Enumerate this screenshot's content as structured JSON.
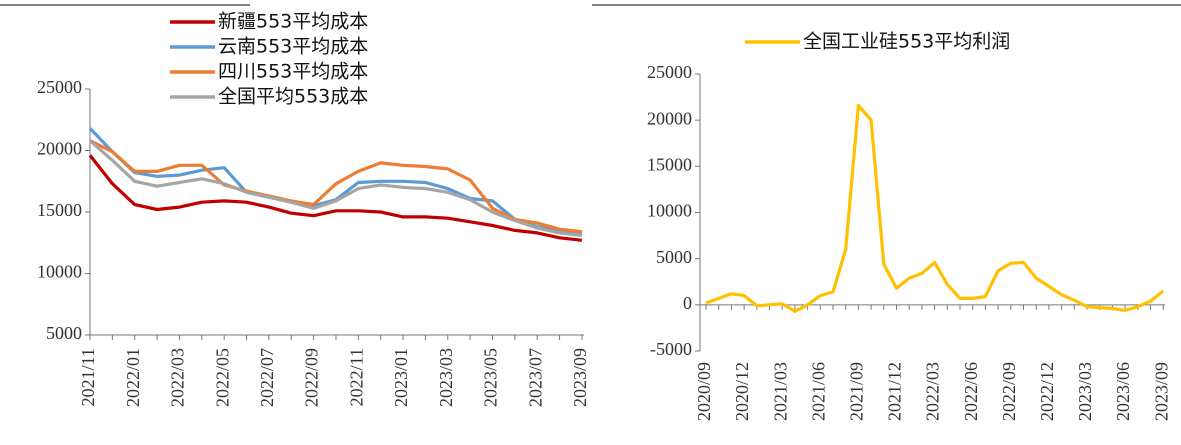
{
  "chart_data": [
    {
      "type": "line",
      "categories": [
        "2021/11",
        null,
        "2022/01",
        null,
        "2022/03",
        null,
        "2022/05",
        null,
        "2022/07",
        null,
        "2022/09",
        null,
        "2022/11",
        null,
        "2023/01",
        null,
        "2023/03",
        null,
        "2023/05",
        null,
        "2023/07",
        null,
        "2023/09"
      ],
      "series": [
        {
          "name": "新疆553平均成本",
          "color": "#c00000",
          "values": [
            19600,
            17300,
            15600,
            15200,
            15400,
            15800,
            15900,
            15800,
            15400,
            14900,
            14700,
            15100,
            15100,
            15000,
            14600,
            14600,
            14500,
            14200,
            13900,
            13500,
            13300,
            12900,
            12700
          ]
        },
        {
          "name": "云南553平均成本",
          "color": "#5b9bd5",
          "values": [
            21800,
            19900,
            18200,
            17900,
            18000,
            18400,
            18600,
            16600,
            16200,
            15800,
            15500,
            16000,
            17400,
            17500,
            17500,
            17400,
            16900,
            16100,
            15900,
            14400,
            13800,
            13500,
            13300
          ]
        },
        {
          "name": "四川553平均成本",
          "color": "#ed7d31",
          "values": [
            20800,
            19900,
            18300,
            18300,
            18800,
            18800,
            17200,
            16700,
            16300,
            15900,
            15600,
            17300,
            18300,
            19000,
            18800,
            18700,
            18500,
            17600,
            15300,
            14400,
            14100,
            13600,
            13400
          ]
        },
        {
          "name": "全国平均553成本",
          "color": "#a5a5a5",
          "values": [
            20800,
            19200,
            17500,
            17100,
            17400,
            17700,
            17300,
            16600,
            16200,
            15800,
            15300,
            15900,
            16900,
            17200,
            17000,
            16900,
            16600,
            16000,
            15000,
            14300,
            13700,
            13300,
            13100
          ]
        }
      ],
      "ylim": [
        5000,
        25000
      ],
      "yticks": [
        5000,
        10000,
        15000,
        20000,
        25000
      ]
    },
    {
      "type": "line",
      "categories": [
        "2020/09",
        null,
        null,
        "2020/12",
        null,
        null,
        "2021/03",
        null,
        null,
        "2021/06",
        null,
        null,
        "2021/09",
        null,
        null,
        "2021/12",
        null,
        null,
        "2022/03",
        null,
        null,
        "2022/06",
        null,
        null,
        "2022/09",
        null,
        null,
        "2022/12",
        null,
        null,
        "2023/03",
        null,
        null,
        "2023/06",
        null,
        null,
        "2023/09"
      ],
      "series": [
        {
          "name": "全国工业硅553平均利润",
          "color": "#ffc000",
          "values": [
            200,
            700,
            1200,
            1000,
            -100,
            0,
            100,
            -700,
            0,
            1000,
            1400,
            6000,
            21600,
            20000,
            4400,
            1800,
            2900,
            3400,
            4600,
            2200,
            700,
            700,
            900,
            3700,
            4500,
            4600,
            2900,
            2000,
            1100,
            500,
            -200,
            -300,
            -400,
            -600,
            -200,
            400,
            1500
          ]
        }
      ],
      "ylim": [
        -5000,
        25000
      ],
      "yticks": [
        -5000,
        0,
        5000,
        10000,
        15000,
        20000,
        25000
      ]
    }
  ]
}
